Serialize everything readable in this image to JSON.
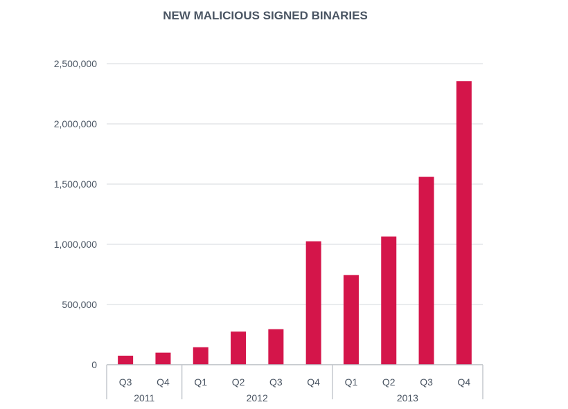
{
  "chart_data": {
    "type": "bar",
    "title": "NEW MALICIOUS SIGNED BINARIES",
    "xlabel": "",
    "ylabel": "",
    "ylim": [
      0,
      2500000
    ],
    "y_ticks": [
      "0",
      "500,000",
      "1,000,000",
      "1,500,000",
      "2,000,000",
      "2,500,000"
    ],
    "y_tick_values": [
      0,
      500000,
      1000000,
      1500000,
      2000000,
      2500000
    ],
    "grid": true,
    "bar_color": "#d4154a",
    "categories": [
      "Q3",
      "Q4",
      "Q1",
      "Q2",
      "Q3",
      "Q4",
      "Q1",
      "Q2",
      "Q3",
      "Q4"
    ],
    "groups": [
      {
        "label": "2011",
        "count": 2
      },
      {
        "label": "2012",
        "count": 4
      },
      {
        "label": "2013",
        "count": 4
      }
    ],
    "values": [
      75000,
      100000,
      145000,
      275000,
      295000,
      1025000,
      745000,
      1065000,
      1560000,
      2355000
    ]
  }
}
